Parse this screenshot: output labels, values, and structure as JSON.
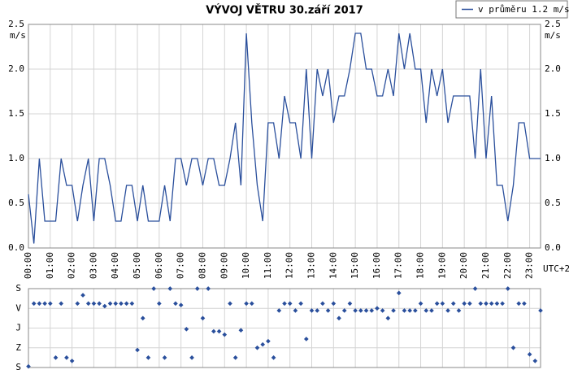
{
  "chart_data": [
    {
      "type": "line",
      "title": "VÝVOJ VĚTRU  30.září 2017",
      "y_unit": "m/s",
      "x_unit": "UTC+2",
      "x": [
        0,
        0.25,
        0.5,
        0.75,
        1,
        1.25,
        1.5,
        1.75,
        2,
        2.25,
        2.5,
        2.75,
        3,
        3.25,
        3.5,
        3.75,
        4,
        4.25,
        4.5,
        4.75,
        5,
        5.25,
        5.5,
        5.75,
        6,
        6.25,
        6.5,
        6.75,
        7,
        7.25,
        7.5,
        7.75,
        8,
        8.25,
        8.5,
        8.75,
        9,
        9.25,
        9.5,
        9.75,
        10,
        10.25,
        10.5,
        10.75,
        11,
        11.25,
        11.5,
        11.75,
        12,
        12.25,
        12.5,
        12.75,
        13,
        13.25,
        13.5,
        13.75,
        14,
        14.25,
        14.5,
        14.75,
        15,
        15.25,
        15.5,
        15.75,
        16,
        16.25,
        16.5,
        16.75,
        17,
        17.25,
        17.5,
        17.75,
        18,
        18.25,
        18.5,
        18.75,
        19,
        19.25,
        19.5,
        19.75,
        20,
        20.25,
        20.5,
        20.75,
        21,
        21.25,
        21.5,
        21.75,
        22,
        22.25,
        22.5,
        22.75,
        23,
        23.25,
        23.5
      ],
      "series": [
        {
          "name": "v průměru 1.2 m/s",
          "color": "#2a4f9c",
          "values": [
            0.6,
            0.05,
            1.0,
            0.3,
            0.3,
            0.3,
            1.0,
            0.7,
            0.7,
            0.3,
            0.7,
            1.0,
            0.3,
            1.0,
            1.0,
            0.7,
            0.3,
            0.3,
            0.7,
            0.7,
            0.3,
            0.7,
            0.3,
            0.3,
            0.3,
            0.7,
            0.3,
            1.0,
            1.0,
            0.7,
            1.0,
            1.0,
            0.7,
            1.0,
            1.0,
            0.7,
            0.7,
            1.0,
            1.4,
            0.7,
            2.4,
            1.4,
            0.7,
            0.3,
            1.4,
            1.4,
            1.0,
            1.7,
            1.4,
            1.4,
            1.0,
            2.0,
            1.0,
            2.0,
            1.7,
            2.0,
            1.4,
            1.7,
            1.7,
            2.0,
            2.4,
            2.4,
            2.0,
            2.0,
            1.7,
            1.7,
            2.0,
            1.7,
            2.4,
            2.0,
            2.4,
            2.0,
            2.0,
            1.4,
            2.0,
            1.7,
            2.0,
            1.4,
            1.7,
            1.7,
            1.7,
            1.7,
            1.0,
            2.0,
            1.0,
            1.7,
            0.7,
            0.7,
            0.3,
            0.7,
            1.4,
            1.4,
            1.0,
            1.0,
            1.0
          ]
        }
      ],
      "xlim": [
        0,
        23.5
      ],
      "xticks": [
        {
          "value": 0,
          "label": "00:00"
        },
        {
          "value": 1,
          "label": "01:00"
        },
        {
          "value": 2,
          "label": "02:00"
        },
        {
          "value": 3,
          "label": "03:00"
        },
        {
          "value": 4,
          "label": "04:00"
        },
        {
          "value": 5,
          "label": "05:00"
        },
        {
          "value": 6,
          "label": "06:00"
        },
        {
          "value": 7,
          "label": "07:00"
        },
        {
          "value": 8,
          "label": "08:00"
        },
        {
          "value": 9,
          "label": "09:00"
        },
        {
          "value": 10,
          "label": "10:00"
        },
        {
          "value": 11,
          "label": "11:00"
        },
        {
          "value": 12,
          "label": "12:00"
        },
        {
          "value": 13,
          "label": "13:00"
        },
        {
          "value": 14,
          "label": "14:00"
        },
        {
          "value": 15,
          "label": "15:00"
        },
        {
          "value": 16,
          "label": "16:00"
        },
        {
          "value": 17,
          "label": "17:00"
        },
        {
          "value": 18,
          "label": "18:00"
        },
        {
          "value": 19,
          "label": "19:00"
        },
        {
          "value": 20,
          "label": "20:00"
        },
        {
          "value": 21,
          "label": "21:00"
        },
        {
          "value": 22,
          "label": "22:00"
        },
        {
          "value": 23,
          "label": "23:00"
        }
      ],
      "ylim": [
        0,
        2.5
      ],
      "yticks": [
        {
          "value": 0,
          "label": "0.0"
        },
        0.5,
        {
          "value": 1,
          "label": "1.0"
        },
        1.5,
        {
          "value": 2,
          "label": "2.0"
        },
        2.5
      ],
      "grid": true
    },
    {
      "type": "scatter",
      "color": "#2a4f9c",
      "x": [
        0,
        0.25,
        0.5,
        0.75,
        1,
        1.25,
        1.5,
        1.75,
        2,
        2.25,
        2.5,
        2.75,
        3,
        3.25,
        3.5,
        3.75,
        4,
        4.25,
        4.5,
        4.75,
        5,
        5.25,
        5.5,
        5.75,
        6,
        6.25,
        6.5,
        6.75,
        7,
        7.25,
        7.5,
        7.75,
        8,
        8.25,
        8.5,
        8.75,
        9,
        9.25,
        9.5,
        9.75,
        10,
        10.25,
        10.5,
        10.75,
        11,
        11.25,
        11.5,
        11.75,
        12,
        12.25,
        12.5,
        12.75,
        13,
        13.25,
        13.5,
        13.75,
        14,
        14.25,
        14.5,
        14.75,
        15,
        15.25,
        15.5,
        15.75,
        16,
        16.25,
        16.5,
        16.75,
        17,
        17.25,
        17.5,
        17.75,
        18,
        18.25,
        18.5,
        18.75,
        19,
        19.25,
        19.5,
        19.75,
        20,
        20.25,
        20.5,
        20.75,
        21,
        21.25,
        21.5,
        21.75,
        22,
        22.25,
        22.5,
        22.75,
        23,
        23.25,
        23.5
      ],
      "values": [
        355,
        68,
        68,
        68,
        68,
        315,
        68,
        315,
        330,
        68,
        30,
        68,
        68,
        68,
        80,
        68,
        68,
        68,
        68,
        68,
        280,
        135,
        315,
        0,
        68,
        315,
        0,
        68,
        75,
        185,
        315,
        0,
        135,
        0,
        195,
        195,
        210,
        68,
        315,
        190,
        68,
        68,
        270,
        255,
        240,
        315,
        100,
        68,
        68,
        100,
        68,
        230,
        100,
        100,
        68,
        100,
        68,
        135,
        100,
        68,
        100,
        100,
        100,
        100,
        90,
        100,
        135,
        100,
        20,
        100,
        100,
        100,
        68,
        100,
        100,
        68,
        68,
        100,
        68,
        100,
        68,
        68,
        0,
        68,
        68,
        68,
        68,
        68,
        0,
        270,
        68,
        68,
        300,
        330,
        100
      ],
      "xlim": [
        0,
        23.5
      ],
      "ylim": [
        360,
        0
      ],
      "yticks": [
        {
          "value": 0,
          "label": "S"
        },
        {
          "value": 90,
          "label": "V"
        },
        {
          "value": 180,
          "label": "J"
        },
        {
          "value": 270,
          "label": "Z"
        },
        {
          "value": 360,
          "label": "S"
        }
      ],
      "grid": true
    }
  ]
}
